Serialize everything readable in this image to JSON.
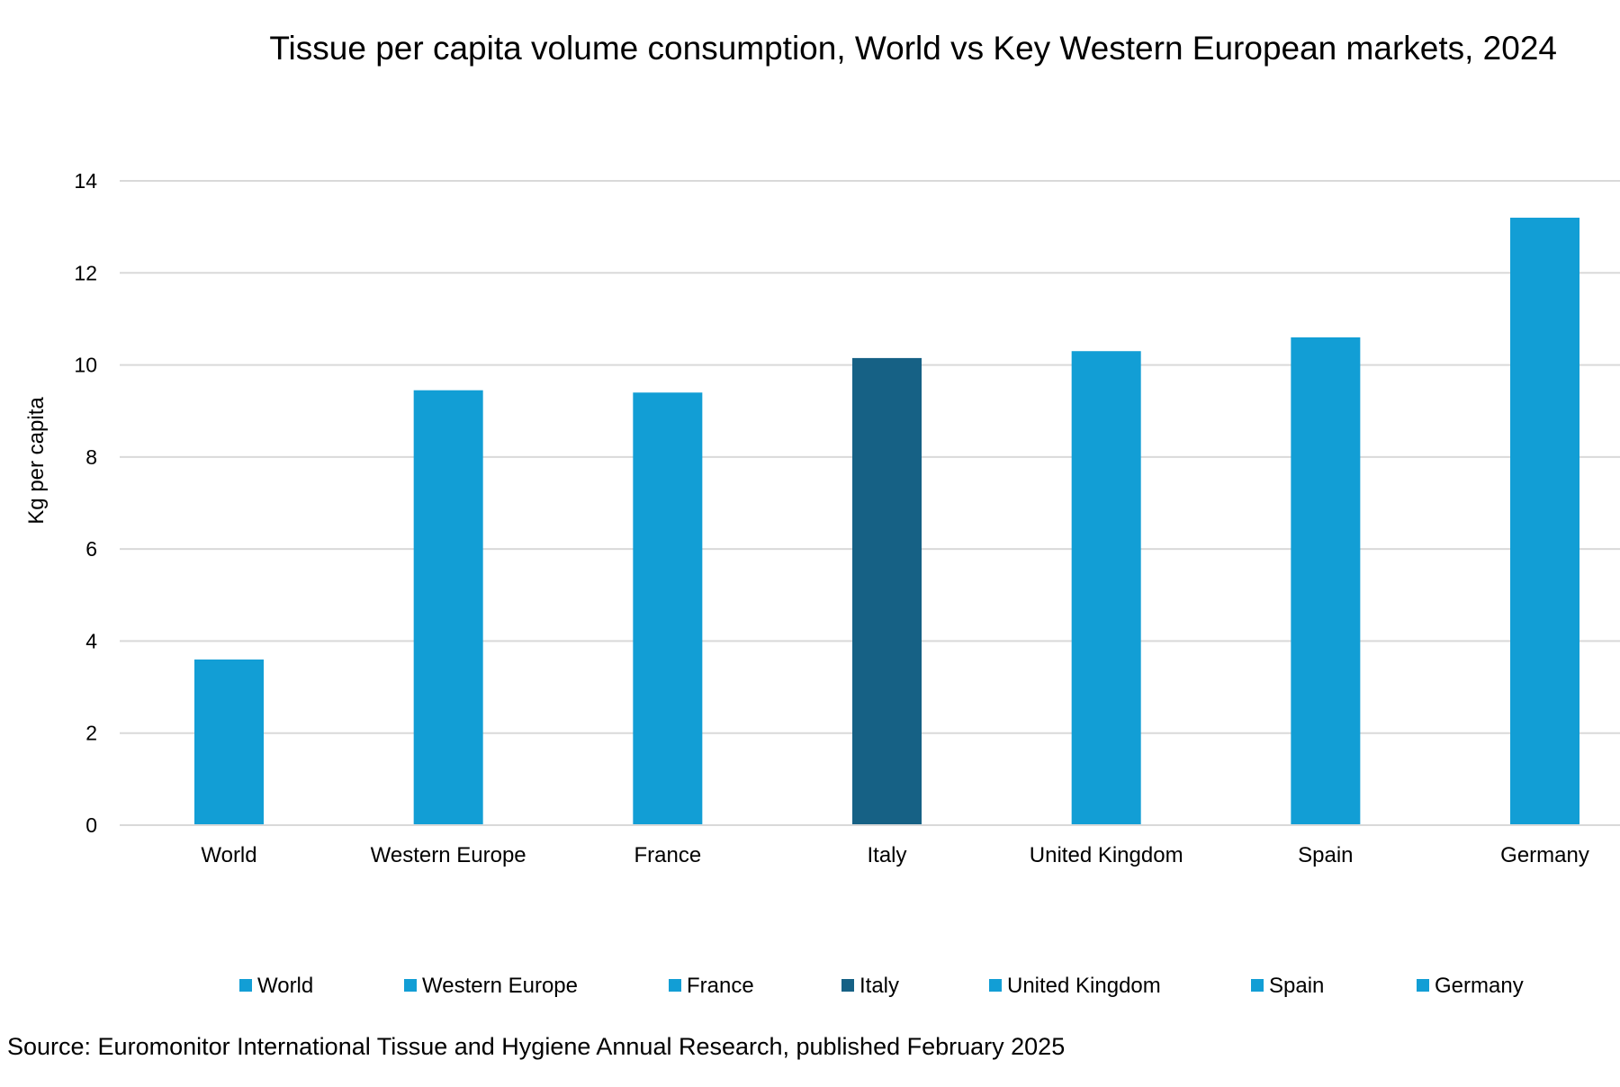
{
  "chart_data": {
    "type": "bar",
    "title": "Tissue per capita volume consumption, World vs Key Western European markets, 2024",
    "xlabel": "",
    "ylabel": "Kg per capita",
    "ylim": [
      0,
      14
    ],
    "yticks": [
      0,
      2,
      4,
      6,
      8,
      10,
      12,
      14
    ],
    "grid": true,
    "legend_position": "bottom",
    "categories": [
      "World",
      "Western Europe",
      "France",
      "Italy",
      "United Kingdom",
      "Spain",
      "Germany"
    ],
    "values": [
      3.6,
      9.45,
      9.4,
      10.15,
      10.3,
      10.6,
      13.2
    ],
    "colors": [
      "#129ED5",
      "#129ED5",
      "#129ED5",
      "#166185",
      "#129ED5",
      "#129ED5",
      "#129ED5"
    ],
    "legend": [
      "World",
      "Western Europe",
      "France",
      "Italy",
      "United Kingdom",
      "Spain",
      "Germany"
    ]
  },
  "source_note": "Source: Euromonitor International Tissue and Hygiene Annual Research, published February 2025"
}
